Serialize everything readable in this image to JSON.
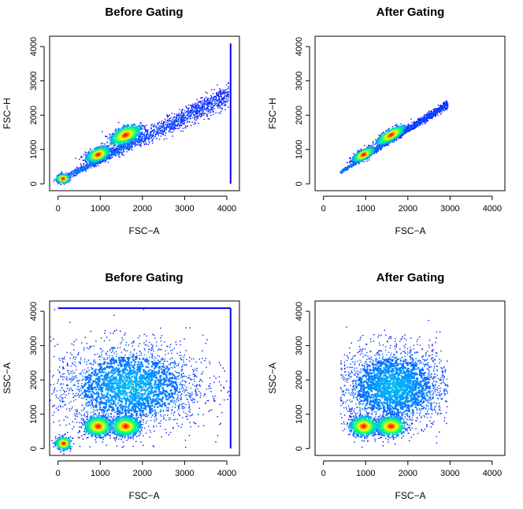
{
  "chart_data": [
    {
      "type": "scatter",
      "title": "Before Gating",
      "xlabel": "FSC−A",
      "ylabel": "FSC−H",
      "xlim": [
        -200,
        4300
      ],
      "ylim": [
        -200,
        4300
      ],
      "xticks": [
        0,
        1000,
        2000,
        3000,
        4000
      ],
      "yticks": [
        0,
        1000,
        2000,
        3000,
        4000
      ],
      "grid": false,
      "density_colors": [
        "#0000ff",
        "#00aaff",
        "#00ff80",
        "#ffff00",
        "#ff0000"
      ],
      "clusters": [
        {
          "kind": "line-band",
          "x": [
            0,
            4050
          ],
          "slope": 0.62,
          "intercept": 80,
          "spread": 260,
          "count": 1800
        },
        {
          "kind": "blob",
          "cx": 950,
          "cy": 850,
          "sx": 150,
          "sy": 90,
          "rot": 0.55,
          "count": 700
        },
        {
          "kind": "blob",
          "cx": 1600,
          "cy": 1420,
          "sx": 200,
          "sy": 110,
          "rot": 0.6,
          "count": 700
        },
        {
          "kind": "blob",
          "cx": 120,
          "cy": 150,
          "sx": 80,
          "sy": 60,
          "rot": 0.0,
          "count": 250
        }
      ],
      "saturated_edges": {
        "x_max": 4090,
        "y_max": 4090
      }
    },
    {
      "type": "scatter",
      "title": "After Gating",
      "xlabel": "FSC−A",
      "ylabel": "FSC−H",
      "xlim": [
        -200,
        4300
      ],
      "ylim": [
        -200,
        4300
      ],
      "xticks": [
        0,
        1000,
        2000,
        3000,
        4000
      ],
      "yticks": [
        0,
        1000,
        2000,
        3000,
        4000
      ],
      "grid": false,
      "density_colors": [
        "#0000ff",
        "#00aaff",
        "#00ff80",
        "#ffff00",
        "#ff0000"
      ],
      "clusters": [
        {
          "kind": "line-band",
          "x": [
            400,
            2950
          ],
          "slope": 0.78,
          "intercept": 20,
          "spread": 90,
          "count": 1600
        },
        {
          "kind": "blob",
          "cx": 950,
          "cy": 850,
          "sx": 150,
          "sy": 60,
          "rot": 0.65,
          "count": 700
        },
        {
          "kind": "blob",
          "cx": 1600,
          "cy": 1420,
          "sx": 200,
          "sy": 70,
          "rot": 0.65,
          "count": 700
        }
      ]
    },
    {
      "type": "scatter",
      "title": "Before Gating",
      "xlabel": "FSC−A",
      "ylabel": "SSC−A",
      "xlim": [
        -200,
        4300
      ],
      "ylim": [
        -200,
        4300
      ],
      "xticks": [
        0,
        1000,
        2000,
        3000,
        4000
      ],
      "yticks": [
        0,
        1000,
        2000,
        3000,
        4000
      ],
      "grid": false,
      "density_colors": [
        "#0000ff",
        "#00aaff",
        "#00ff80",
        "#ffff00",
        "#ff0000"
      ],
      "clusters": [
        {
          "kind": "cloud",
          "cx": 1700,
          "cy": 1800,
          "sx": 900,
          "sy": 700,
          "count": 2600
        },
        {
          "kind": "blob",
          "cx": 950,
          "cy": 650,
          "sx": 160,
          "sy": 140,
          "rot": 0,
          "count": 700
        },
        {
          "kind": "blob",
          "cx": 1600,
          "cy": 650,
          "sx": 170,
          "sy": 140,
          "rot": 0,
          "count": 700
        },
        {
          "kind": "blob",
          "cx": 130,
          "cy": 150,
          "sx": 90,
          "sy": 90,
          "rot": 0,
          "count": 300
        }
      ],
      "saturated_edges": {
        "x_max": 4090,
        "y_max": 4090
      }
    },
    {
      "type": "scatter",
      "title": "After Gating",
      "xlabel": "FSC−A",
      "ylabel": "SSC−A",
      "xlim": [
        -200,
        4300
      ],
      "ylim": [
        -200,
        4300
      ],
      "xticks": [
        0,
        1000,
        2000,
        3000,
        4000
      ],
      "yticks": [
        0,
        1000,
        2000,
        3000,
        4000
      ],
      "grid": false,
      "density_colors": [
        "#0000ff",
        "#00aaff",
        "#00ff80",
        "#ffff00",
        "#ff0000"
      ],
      "clusters": [
        {
          "kind": "cloud",
          "cx": 1650,
          "cy": 1800,
          "sx": 700,
          "sy": 650,
          "xrange": [
            400,
            2950
          ],
          "count": 2400
        },
        {
          "kind": "blob",
          "cx": 950,
          "cy": 650,
          "sx": 160,
          "sy": 140,
          "rot": 0,
          "count": 700
        },
        {
          "kind": "blob",
          "cx": 1600,
          "cy": 650,
          "sx": 170,
          "sy": 140,
          "rot": 0,
          "count": 700
        }
      ]
    }
  ]
}
